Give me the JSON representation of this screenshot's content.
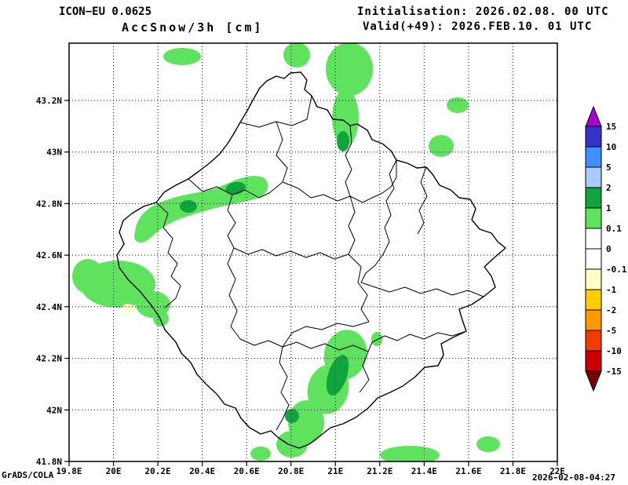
{
  "header": {
    "model": "ICON−EU 0.0625",
    "variable": "AccSnow/3h [cm]",
    "initialisation": "Initialisation: 2026.02.08. 00 UTC",
    "valid": "Valid(+49): 2026.FEB.10. 01 UTC"
  },
  "footer": {
    "credit": "GrADS/COLA",
    "timestamp": "2026-02-08-04:27"
  },
  "map": {
    "x_ticks": [
      "19.8E",
      "20E",
      "20.2E",
      "20.4E",
      "20.6E",
      "20.8E",
      "21E",
      "21.2E",
      "21.4E",
      "21.6E",
      "21.8E",
      "22E"
    ],
    "y_ticks": [
      "41.8N",
      "42N",
      "42.2N",
      "42.4N",
      "42.6N",
      "42.8N",
      "43N",
      "43.2N"
    ]
  },
  "colorbar": {
    "labels": [
      "15",
      "10",
      "5",
      "2",
      "1",
      "0.1",
      "0",
      "-0.1",
      "-1",
      "-2",
      "-5",
      "-10",
      "-15"
    ],
    "arrow_top_color": "#aa00cc",
    "arrow_bottom_color": "#780000",
    "segment_colors": [
      "#3333cc",
      "#3f8fff",
      "#a8ccff",
      "#0fa43c",
      "#5fe35f",
      "#ffffff",
      "#ffffff",
      "#ffffc8",
      "#ffcc00",
      "#ff9900",
      "#f03c00",
      "#cc0000"
    ]
  },
  "colors": {
    "snow_light": "#5fe35f",
    "snow_dark": "#0fa43c",
    "negative_light": "#ffffc8",
    "line": "#000000",
    "background": "#ffffff"
  },
  "chart_data": {
    "type": "heatmap",
    "title": "AccSnow/3h [cm]",
    "units": "cm",
    "model": "ICON-EU 0.0625",
    "lon_range": [
      19.8,
      22.0
    ],
    "lat_range": [
      41.8,
      43.42
    ],
    "contour_levels": [
      -15,
      -10,
      -5,
      -2,
      -1,
      -0.1,
      0,
      0.1,
      1,
      2,
      5,
      10,
      15
    ],
    "legend_position": "right",
    "grid": "dotted",
    "shaded_regions": [
      {
        "approx_lon": 20.31,
        "approx_lat": 43.36,
        "value_cm": "0.1-1"
      },
      {
        "approx_lon": 20.83,
        "approx_lat": 43.37,
        "value_cm": "0.1-1"
      },
      {
        "approx_lon": 21.05,
        "approx_lat": 43.3,
        "value_cm": "0.1-1"
      },
      {
        "approx_lon": 21.03,
        "approx_lat": 43.04,
        "value_cm": "1-2"
      },
      {
        "approx_lon": 21.55,
        "approx_lat": 43.18,
        "value_cm": "0.1-1"
      },
      {
        "approx_lon": 21.48,
        "approx_lat": 43.02,
        "value_cm": "0.1-1"
      },
      {
        "approx_lon": 20.33,
        "approx_lat": 42.88,
        "value_cm": "0.1-1"
      },
      {
        "approx_lon": 20.54,
        "approx_lat": 42.93,
        "value_cm": "1-2"
      },
      {
        "approx_lon": 20.02,
        "approx_lat": 42.49,
        "value_cm": "0.1-1"
      },
      {
        "approx_lon": 20.06,
        "approx_lat": 42.42,
        "value_cm": "-1 to -0.1"
      },
      {
        "approx_lon": 21.02,
        "approx_lat": 42.14,
        "value_cm": "1-2"
      },
      {
        "approx_lon": 20.82,
        "approx_lat": 41.96,
        "value_cm": "1-2"
      },
      {
        "approx_lon": 20.66,
        "approx_lat": 41.82,
        "value_cm": "0.1-1"
      },
      {
        "approx_lon": 21.33,
        "approx_lat": 41.81,
        "value_cm": "0.1-1"
      },
      {
        "approx_lon": 21.69,
        "approx_lat": 41.87,
        "value_cm": "0.1-1"
      },
      {
        "approx_lon": 21.19,
        "approx_lat": 42.28,
        "value_cm": "0.1-1"
      }
    ]
  }
}
